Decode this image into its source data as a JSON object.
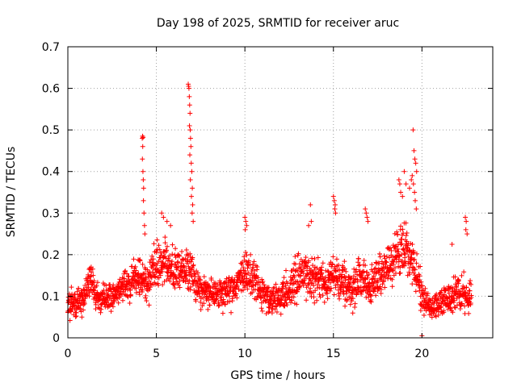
{
  "chart_data": {
    "type": "scatter",
    "title": "Day 198 of 2025, SRMTID for receiver aruc",
    "xlabel": "GPS time / hours",
    "ylabel": "SRMTID / TECUs",
    "xlim": [
      0,
      24
    ],
    "ylim": [
      0,
      0.7
    ],
    "xticks": [
      0,
      5,
      10,
      15,
      20
    ],
    "yticks": [
      0,
      0.1,
      0.2,
      0.3,
      0.4,
      0.5,
      0.6,
      0.7
    ],
    "xtick_labels": [
      "0",
      "5",
      "10",
      "15",
      "20"
    ],
    "ytick_labels": [
      "0",
      "0.1",
      "0.2",
      "0.3",
      "0.4",
      "0.5",
      "0.6",
      "0.7"
    ],
    "grid": true,
    "marker": "+",
    "color": "#ff0000",
    "series": [
      {
        "name": "aruc",
        "profile": [
          [
            0.0,
            0.075,
            0.03
          ],
          [
            0.5,
            0.085,
            0.03
          ],
          [
            1.0,
            0.11,
            0.035
          ],
          [
            1.3,
            0.14,
            0.04
          ],
          [
            1.6,
            0.09,
            0.03
          ],
          [
            2.0,
            0.1,
            0.03
          ],
          [
            2.5,
            0.1,
            0.03
          ],
          [
            3.0,
            0.12,
            0.035
          ],
          [
            3.5,
            0.13,
            0.035
          ],
          [
            4.0,
            0.15,
            0.04
          ],
          [
            4.5,
            0.13,
            0.04
          ],
          [
            5.0,
            0.17,
            0.05
          ],
          [
            5.5,
            0.19,
            0.05
          ],
          [
            6.0,
            0.15,
            0.05
          ],
          [
            6.5,
            0.17,
            0.05
          ],
          [
            7.0,
            0.15,
            0.05
          ],
          [
            7.5,
            0.11,
            0.035
          ],
          [
            8.0,
            0.11,
            0.035
          ],
          [
            8.5,
            0.1,
            0.035
          ],
          [
            9.0,
            0.11,
            0.04
          ],
          [
            9.5,
            0.13,
            0.04
          ],
          [
            10.0,
            0.16,
            0.045
          ],
          [
            10.5,
            0.15,
            0.045
          ],
          [
            11.0,
            0.1,
            0.04
          ],
          [
            11.5,
            0.09,
            0.035
          ],
          [
            12.0,
            0.1,
            0.04
          ],
          [
            12.5,
            0.12,
            0.045
          ],
          [
            13.0,
            0.15,
            0.05
          ],
          [
            13.5,
            0.15,
            0.05
          ],
          [
            14.0,
            0.14,
            0.05
          ],
          [
            14.5,
            0.13,
            0.045
          ],
          [
            15.0,
            0.15,
            0.05
          ],
          [
            15.5,
            0.13,
            0.045
          ],
          [
            16.0,
            0.12,
            0.045
          ],
          [
            16.5,
            0.14,
            0.05
          ],
          [
            17.0,
            0.12,
            0.045
          ],
          [
            17.5,
            0.14,
            0.05
          ],
          [
            18.0,
            0.17,
            0.05
          ],
          [
            18.5,
            0.2,
            0.06
          ],
          [
            19.0,
            0.22,
            0.06
          ],
          [
            19.5,
            0.19,
            0.06
          ],
          [
            20.0,
            0.1,
            0.04
          ],
          [
            20.5,
            0.07,
            0.025
          ],
          [
            21.0,
            0.08,
            0.03
          ],
          [
            21.5,
            0.1,
            0.035
          ],
          [
            22.0,
            0.11,
            0.04
          ],
          [
            22.5,
            0.1,
            0.04
          ],
          [
            22.8,
            0.1,
            0.04
          ]
        ],
        "spikes": [
          [
            4.2,
            0.48
          ],
          [
            4.22,
            0.485
          ],
          [
            4.25,
            0.482
          ],
          [
            4.23,
            0.46
          ],
          [
            4.21,
            0.43
          ],
          [
            4.24,
            0.4
          ],
          [
            4.26,
            0.38
          ],
          [
            4.28,
            0.36
          ],
          [
            4.27,
            0.33
          ],
          [
            4.3,
            0.3
          ],
          [
            4.33,
            0.27
          ],
          [
            4.35,
            0.25
          ],
          [
            6.8,
            0.61
          ],
          [
            6.82,
            0.605
          ],
          [
            6.84,
            0.6
          ],
          [
            6.86,
            0.58
          ],
          [
            6.88,
            0.56
          ],
          [
            6.9,
            0.54
          ],
          [
            6.87,
            0.51
          ],
          [
            6.91,
            0.5
          ],
          [
            6.93,
            0.48
          ],
          [
            6.95,
            0.46
          ],
          [
            6.89,
            0.44
          ],
          [
            6.97,
            0.42
          ],
          [
            7.0,
            0.4
          ],
          [
            6.92,
            0.38
          ],
          [
            7.03,
            0.36
          ],
          [
            6.98,
            0.34
          ],
          [
            7.05,
            0.32
          ],
          [
            7.02,
            0.3
          ],
          [
            7.08,
            0.28
          ],
          [
            5.3,
            0.3
          ],
          [
            5.4,
            0.29
          ],
          [
            5.6,
            0.28
          ],
          [
            5.8,
            0.27
          ],
          [
            10.0,
            0.29
          ],
          [
            10.05,
            0.28
          ],
          [
            10.1,
            0.27
          ],
          [
            10.02,
            0.26
          ],
          [
            13.7,
            0.32
          ],
          [
            13.75,
            0.28
          ],
          [
            13.6,
            0.27
          ],
          [
            15.0,
            0.34
          ],
          [
            15.05,
            0.33
          ],
          [
            15.1,
            0.32
          ],
          [
            15.08,
            0.31
          ],
          [
            15.12,
            0.3
          ],
          [
            16.8,
            0.31
          ],
          [
            16.85,
            0.3
          ],
          [
            16.9,
            0.29
          ],
          [
            16.95,
            0.28
          ],
          [
            18.7,
            0.38
          ],
          [
            18.75,
            0.37
          ],
          [
            18.8,
            0.35
          ],
          [
            18.9,
            0.34
          ],
          [
            19.0,
            0.4
          ],
          [
            19.1,
            0.37
          ],
          [
            19.3,
            0.36
          ],
          [
            19.4,
            0.38
          ],
          [
            19.5,
            0.5
          ],
          [
            19.55,
            0.45
          ],
          [
            19.6,
            0.43
          ],
          [
            19.65,
            0.42
          ],
          [
            19.7,
            0.4
          ],
          [
            19.45,
            0.39
          ],
          [
            19.52,
            0.37
          ],
          [
            19.58,
            0.35
          ],
          [
            19.62,
            0.33
          ],
          [
            19.68,
            0.31
          ],
          [
            20.0,
            0.005
          ],
          [
            21.7,
            0.225
          ],
          [
            22.45,
            0.29
          ],
          [
            22.5,
            0.28
          ],
          [
            22.48,
            0.26
          ],
          [
            22.55,
            0.25
          ]
        ]
      }
    ]
  }
}
